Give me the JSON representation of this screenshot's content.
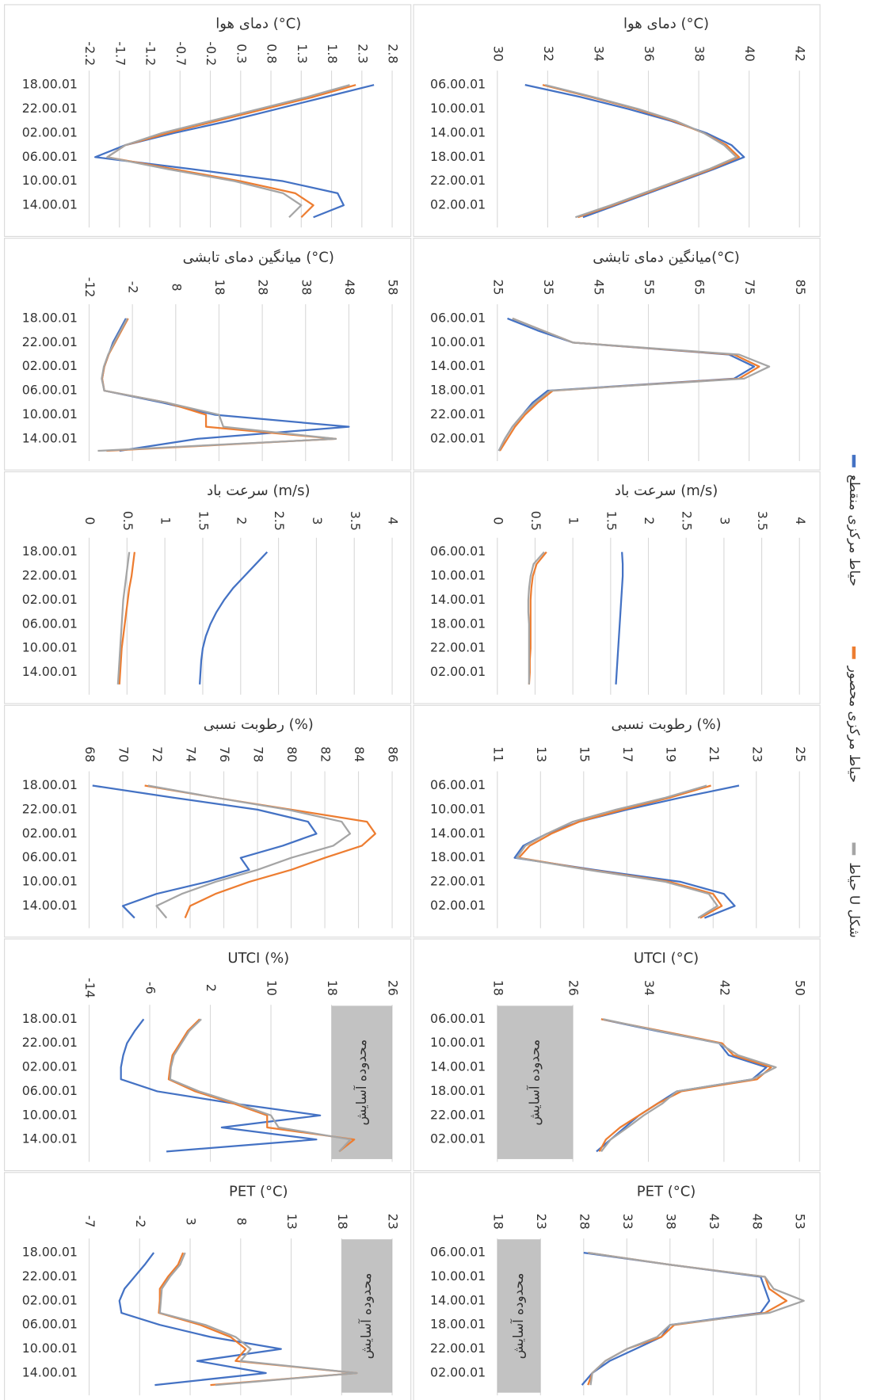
{
  "chart_data": [
    {
      "type": "line",
      "title": "دمای هوا (°C)",
      "categories": [
        "18.00.01",
        null,
        "22.00.01",
        null,
        "02.00.01",
        null,
        "06.00.01",
        null,
        "10.00.01",
        null,
        "14.00.01",
        null
      ],
      "xlim": [
        -2.2,
        2.8
      ],
      "xticks": [
        -2.2,
        -1.7,
        -1.2,
        -0.7,
        -0.2,
        0.3,
        0.8,
        1.3,
        1.8,
        2.3,
        2.8
      ],
      "series": [
        {
          "values": [
            2.5,
            1.7,
            0.9,
            0.1,
            -0.8,
            -1.6,
            -2.1,
            -0.5,
            1.0,
            1.9,
            2.0,
            1.5
          ]
        },
        {
          "values": [
            2.2,
            1.5,
            0.7,
            -0.1,
            -0.9,
            -1.6,
            -1.9,
            -0.8,
            0.3,
            1.2,
            1.5,
            1.3
          ]
        },
        {
          "values": [
            2.1,
            1.4,
            0.6,
            -0.2,
            -1.0,
            -1.6,
            -1.9,
            -0.9,
            0.2,
            1.0,
            1.3,
            1.1
          ]
        }
      ]
    },
    {
      "type": "line",
      "title": "دمای هوا (°C)",
      "categories": [
        "06.00.01",
        null,
        "10.00.01",
        null,
        "14.00.01",
        null,
        "18.00.01",
        null,
        "22.00.01",
        null,
        "02.00.01",
        null
      ],
      "xlim": [
        30,
        42
      ],
      "xticks": [
        30,
        32,
        34,
        36,
        38,
        40,
        42
      ],
      "series": [
        {
          "values": [
            31.1,
            33.3,
            35.2,
            36.9,
            38.3,
            39.3,
            39.8,
            38.6,
            37.3,
            36.0,
            34.7,
            33.4
          ]
        },
        {
          "values": [
            31.8,
            33.7,
            35.5,
            37.0,
            38.2,
            39.1,
            39.6,
            38.5,
            37.2,
            35.9,
            34.6,
            33.2
          ]
        },
        {
          "values": [
            31.9,
            33.8,
            35.6,
            37.1,
            38.2,
            39.0,
            39.5,
            38.4,
            37.1,
            35.8,
            34.5,
            33.1
          ]
        }
      ]
    },
    {
      "type": "line",
      "title": "میانگین دمای تابشی (°C)",
      "categories": [
        "18.00.01",
        null,
        "22.00.01",
        null,
        "02.00.01",
        null,
        "06.00.01",
        null,
        "10.00.01",
        null,
        "14.00.01",
        null
      ],
      "xlim": [
        -12,
        58
      ],
      "xticks": [
        -12,
        -2,
        8,
        18,
        28,
        38,
        48,
        58
      ],
      "series": [
        {
          "values": [
            -3.5,
            -5,
            -6.5,
            -7.5,
            -8.5,
            -9,
            -8.5,
            5,
            17,
            48,
            13,
            -5
          ]
        },
        {
          "values": [
            -3,
            -4.5,
            -6,
            -7.5,
            -8.5,
            -9,
            -8.5,
            6,
            15,
            15,
            45,
            -8
          ]
        },
        {
          "values": [
            -3.2,
            -4.7,
            -6.2,
            -7.6,
            -8.6,
            -9.1,
            -8.5,
            6,
            18,
            19,
            45,
            -10
          ]
        }
      ]
    },
    {
      "type": "line",
      "title": "میانگین دمای تابشی(°C)",
      "categories": [
        "06.00.01",
        null,
        "10.00.01",
        null,
        "14.00.01",
        null,
        "18.00.01",
        null,
        "22.00.01",
        null,
        "02.00.01",
        null
      ],
      "xlim": [
        25,
        85
      ],
      "xticks": [
        25,
        35,
        45,
        55,
        65,
        75,
        85
      ],
      "series": [
        {
          "values": [
            27,
            33,
            40,
            71,
            76,
            72,
            35,
            32,
            30,
            28,
            26.5,
            25.3
          ]
        },
        {
          "values": [
            28,
            34,
            40,
            72,
            77,
            73,
            36,
            33,
            30.5,
            28.5,
            27,
            25.5
          ]
        },
        {
          "values": [
            28,
            34,
            40,
            73,
            79,
            74,
            35.5,
            32.5,
            30,
            28,
            26.5,
            25.3
          ]
        }
      ]
    },
    {
      "type": "line",
      "title": "سرعت باد (m/s)",
      "categories": [
        "18.00.01",
        null,
        "22.00.01",
        null,
        "02.00.01",
        null,
        "06.00.01",
        null,
        "10.00.01",
        null,
        "14.00.01",
        null
      ],
      "xlim": [
        0,
        4
      ],
      "xticks": [
        0,
        0.5,
        1,
        1.5,
        2,
        2.5,
        3,
        3.5,
        4
      ],
      "series": [
        {
          "values": [
            2.35,
            2.2,
            2.05,
            1.9,
            1.78,
            1.68,
            1.6,
            1.54,
            1.5,
            1.48,
            1.47,
            1.46
          ]
        },
        {
          "values": [
            0.6,
            0.58,
            0.56,
            0.53,
            0.51,
            0.49,
            0.47,
            0.45,
            0.43,
            0.42,
            0.41,
            0.4
          ]
        },
        {
          "values": [
            0.53,
            0.51,
            0.49,
            0.47,
            0.45,
            0.44,
            0.43,
            0.42,
            0.41,
            0.4,
            0.39,
            0.38
          ]
        }
      ]
    },
    {
      "type": "line",
      "title": "سرعت باد (m/s)",
      "categories": [
        "06.00.01",
        null,
        "10.00.01",
        null,
        "14.00.01",
        null,
        "18.00.01",
        null,
        "22.00.01",
        null,
        "02.00.01",
        null
      ],
      "xlim": [
        0,
        4
      ],
      "xticks": [
        0,
        0.5,
        1,
        1.5,
        2,
        2.5,
        3,
        3.5,
        4
      ],
      "series": [
        {
          "values": [
            1.65,
            1.66,
            1.66,
            1.65,
            1.64,
            1.63,
            1.62,
            1.61,
            1.6,
            1.59,
            1.58,
            1.57
          ]
        },
        {
          "values": [
            0.65,
            0.52,
            0.47,
            0.45,
            0.44,
            0.44,
            0.44,
            0.44,
            0.44,
            0.43,
            0.43,
            0.42
          ]
        },
        {
          "values": [
            0.62,
            0.48,
            0.44,
            0.42,
            0.41,
            0.41,
            0.42,
            0.42,
            0.42,
            0.42,
            0.42,
            0.42
          ]
        }
      ]
    },
    {
      "type": "line",
      "title": "رطوبت نسبی (%)",
      "categories": [
        "18.00.01",
        null,
        "22.00.01",
        null,
        "02.00.01",
        null,
        "06.00.01",
        null,
        "10.00.01",
        null,
        "14.00.01",
        null
      ],
      "xlim": [
        68,
        86
      ],
      "xticks": [
        68,
        70,
        72,
        74,
        76,
        78,
        80,
        82,
        84,
        86
      ],
      "series": [
        {
          "values": [
            68.2,
            73,
            78,
            81,
            81.5,
            79.5,
            77,
            77.5,
            75,
            72,
            70,
            70.7
          ]
        },
        {
          "values": [
            71.3,
            75.5,
            80,
            84.5,
            85,
            84.2,
            82,
            80,
            77.5,
            75.5,
            74,
            73.7
          ]
        },
        {
          "values": [
            71.5,
            75.5,
            79.8,
            83,
            83.5,
            82.5,
            80,
            78,
            75.5,
            73.5,
            72,
            72.6
          ]
        }
      ]
    },
    {
      "type": "line",
      "title": "رطوبت نسبی (%)",
      "categories": [
        "06.00.01",
        null,
        "10.00.01",
        null,
        "14.00.01",
        null,
        "18.00.01",
        null,
        "22.00.01",
        null,
        "02.00.01",
        null
      ],
      "xlim": [
        11,
        25
      ],
      "xticks": [
        11,
        13,
        15,
        17,
        19,
        21,
        23,
        25
      ],
      "series": [
        {
          "values": [
            22.2,
            19.5,
            17,
            14.8,
            13.3,
            12.2,
            11.8,
            15.5,
            19.5,
            21.5,
            22.0,
            20.6
          ]
        },
        {
          "values": [
            20.9,
            19.0,
            16.8,
            14.8,
            13.5,
            12.5,
            12.0,
            15.3,
            19.0,
            21.0,
            21.4,
            20.4
          ]
        },
        {
          "values": [
            20.7,
            18.8,
            16.5,
            14.5,
            13.3,
            12.3,
            11.9,
            15.2,
            18.8,
            20.8,
            21.2,
            20.3
          ]
        }
      ]
    },
    {
      "type": "line",
      "title": "UTCI (%)",
      "categories": [
        "18.00.01",
        null,
        "22.00.01",
        null,
        "02.00.01",
        null,
        "06.00.01",
        null,
        "10.00.01",
        null,
        "14.00.01",
        null
      ],
      "xlim": [
        -14,
        26
      ],
      "xticks": [
        -14,
        -6,
        2,
        10,
        18,
        26
      ],
      "comfort_zone": {
        "range": [
          18,
          26
        ],
        "label": "محدوده آسایش"
      },
      "series": [
        {
          "values": [
            -6.8,
            -8,
            -9,
            -9.5,
            -9.8,
            -9.8,
            -5,
            5,
            16.5,
            3.5,
            16,
            -3.8
          ]
        },
        {
          "values": [
            0.6,
            -1,
            -2,
            -3,
            -3.3,
            -3.5,
            0,
            5,
            9.5,
            9.5,
            21,
            19
          ]
        },
        {
          "values": [
            0.8,
            -0.8,
            -1.8,
            -2.8,
            -3.2,
            -3.3,
            0.5,
            5.5,
            10,
            11,
            20.5,
            19
          ]
        }
      ]
    },
    {
      "type": "line",
      "title": "UTCI (°C)",
      "categories": [
        "06.00.01",
        null,
        "10.00.01",
        null,
        "14.00.01",
        null,
        "18.00.01",
        null,
        "22.00.01",
        null,
        "02.00.01",
        null
      ],
      "xlim": [
        18,
        50
      ],
      "xticks": [
        18,
        26,
        34,
        42,
        50
      ],
      "comfort_zone": {
        "range": [
          18,
          26
        ],
        "label": "محدوده آسایش"
      },
      "series": [
        {
          "values": [
            29,
            35,
            41.5,
            42.5,
            46.5,
            45,
            37,
            35,
            33,
            31.5,
            30,
            28.5
          ]
        },
        {
          "values": [
            29,
            35.5,
            41.8,
            43,
            47,
            45.5,
            37.5,
            35,
            33,
            31,
            29.5,
            28.8
          ]
        },
        {
          "values": [
            29.2,
            35.2,
            41.5,
            43.5,
            47.5,
            45,
            37,
            35.5,
            33.5,
            31.8,
            30,
            29
          ]
        }
      ]
    },
    {
      "type": "line",
      "title": "PET (°C)",
      "categories": [
        "18.00.01",
        null,
        "22.00.01",
        null,
        "02.00.01",
        null,
        "06.00.01",
        null,
        "10.00.01",
        null,
        "14.00.01",
        null
      ],
      "xlim": [
        -7,
        23
      ],
      "xticks": [
        -7,
        -2,
        3,
        8,
        13,
        18,
        23
      ],
      "comfort_zone": {
        "range": [
          18,
          23
        ],
        "label": "محدوده آسایش"
      },
      "series": [
        {
          "values": [
            -0.6,
            -1.5,
            -2.5,
            -3.5,
            -4,
            -3.8,
            0,
            5,
            12,
            3.7,
            10.5,
            -0.5
          ]
        },
        {
          "values": [
            2.3,
            1.8,
            0.8,
            0,
            0,
            -0.1,
            4,
            7,
            8.5,
            7.5,
            19.5,
            5
          ]
        },
        {
          "values": [
            2.5,
            2,
            1,
            0.2,
            0.1,
            0,
            4.5,
            7.5,
            9,
            8,
            19.5,
            5.5
          ]
        }
      ]
    },
    {
      "type": "line",
      "title": "PET (°C)",
      "categories": [
        "06.00.01",
        null,
        "10.00.01",
        null,
        "14.00.01",
        null,
        "18.00.01",
        null,
        "22.00.01",
        null,
        "02.00.01",
        null
      ],
      "xlim": [
        18,
        53
      ],
      "xticks": [
        18,
        23,
        28,
        33,
        38,
        43,
        48,
        53
      ],
      "comfort_zone": {
        "range": [
          18,
          23
        ],
        "label": "محدوده آسایش"
      },
      "series": [
        {
          "values": [
            28,
            38,
            48.5,
            49,
            49.5,
            48.5,
            38,
            37,
            34,
            31,
            29,
            27.8
          ]
        },
        {
          "values": [
            28.5,
            38,
            49,
            49.5,
            51.5,
            49,
            38.5,
            37,
            33,
            30.5,
            29,
            28.5
          ]
        },
        {
          "values": [
            28.5,
            38,
            49,
            50,
            53.5,
            49.5,
            38,
            36.5,
            33,
            30.5,
            29,
            28.8
          ]
        }
      ]
    }
  ],
  "legend": [
    {
      "name": "حیاط مرکزی منقطع",
      "color": "#4472c4"
    },
    {
      "name": "حیاط مرکزی محصور",
      "color": "#ed7d31"
    },
    {
      "name": "حیاط U شکل",
      "color": "#a5a5a5"
    }
  ]
}
